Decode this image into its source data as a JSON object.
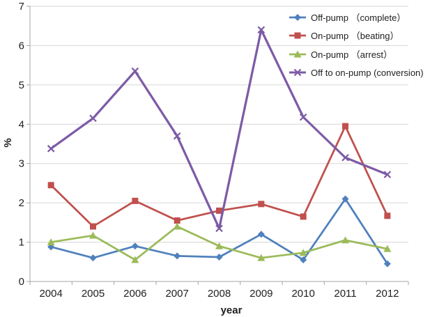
{
  "chart_data": {
    "type": "line",
    "title": "",
    "xlabel": "year",
    "ylabel": "%",
    "categories": [
      "2004",
      "2005",
      "2006",
      "2007",
      "2008",
      "2009",
      "2010",
      "2011",
      "2012"
    ],
    "series": [
      {
        "name": "Off-pump （complete）",
        "marker": "diamond",
        "color": "#4F81BD",
        "values": [
          0.88,
          0.6,
          0.9,
          0.65,
          0.62,
          1.2,
          0.55,
          2.1,
          0.45
        ]
      },
      {
        "name": "On-pump （beating）",
        "marker": "square",
        "color": "#C0504D",
        "values": [
          2.45,
          1.4,
          2.05,
          1.55,
          1.8,
          1.97,
          1.65,
          3.95,
          1.67
        ]
      },
      {
        "name": "On-pump （arrest）",
        "marker": "triangle",
        "color": "#9BBB59",
        "values": [
          1.0,
          1.17,
          0.55,
          1.4,
          0.9,
          0.6,
          0.73,
          1.05,
          0.83
        ]
      },
      {
        "name": "Off to on-pump (conversion)",
        "marker": "x-cross",
        "color": "#7D5BA6",
        "values": [
          3.38,
          4.15,
          5.35,
          3.7,
          1.35,
          6.4,
          4.18,
          3.15,
          2.72
        ]
      }
    ],
    "ylim": [
      0,
      7
    ],
    "ytick_step": 1,
    "grid": true,
    "legend_position": "top-right-inside",
    "axis_color": "#A6A6A6",
    "grid_color": "#D6D6D6",
    "text_color": "#212121"
  }
}
